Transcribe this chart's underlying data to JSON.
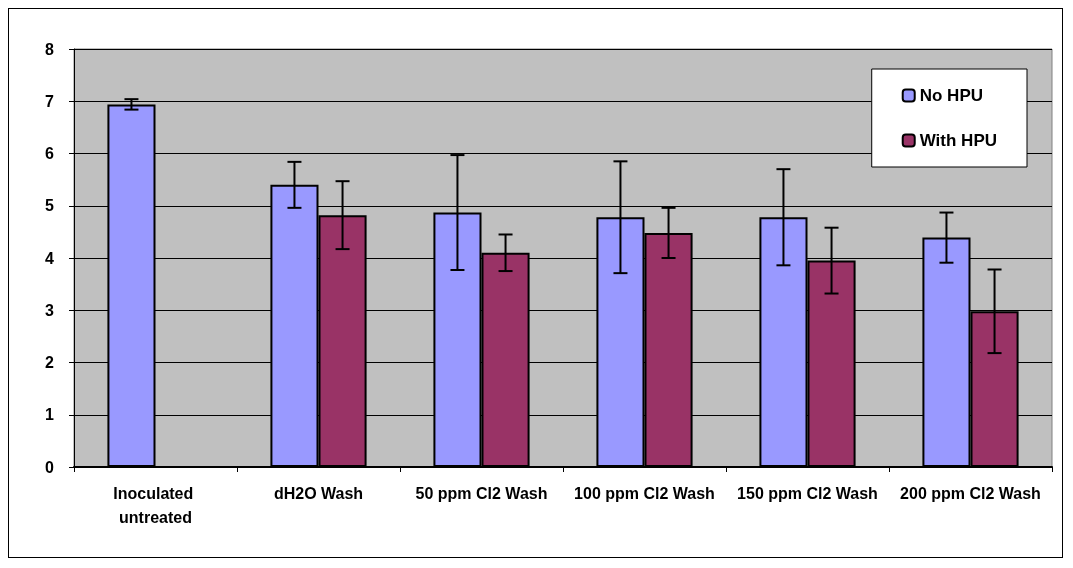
{
  "chart_data": {
    "type": "bar",
    "categories": [
      "Inoculated untreated",
      "dH2O Wash",
      "50 ppm Cl2 Wash",
      "100 ppm Cl2 Wash",
      "150 ppm Cl2 Wash",
      "200 ppm Cl2 Wash"
    ],
    "series": [
      {
        "name": "No HPU",
        "color": "#9999ff",
        "values": [
          6.94,
          5.4,
          4.87,
          4.78,
          4.78,
          4.39
        ],
        "errors": [
          0.1,
          0.44,
          1.1,
          1.07,
          0.92,
          0.48
        ]
      },
      {
        "name": "With HPU",
        "color": "#993366",
        "values": [
          null,
          4.82,
          4.1,
          4.48,
          3.95,
          2.98
        ],
        "errors": [
          null,
          0.65,
          0.35,
          0.48,
          0.63,
          0.8
        ]
      }
    ],
    "ylim": [
      0,
      8
    ],
    "yticks": [
      0,
      1,
      2,
      3,
      4,
      5,
      6,
      7,
      8
    ],
    "grid": "y",
    "legend": "top right"
  }
}
